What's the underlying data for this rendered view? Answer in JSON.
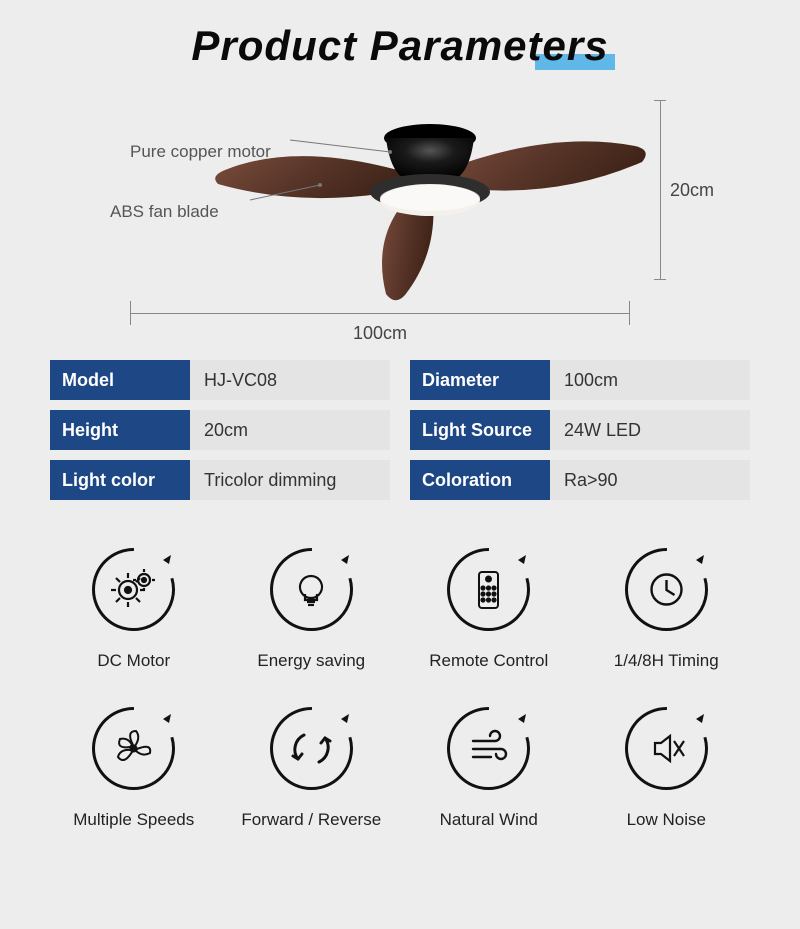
{
  "title": "Product Parameters",
  "title_highlight_color": "#5fb8e8",
  "callouts": {
    "motor": "Pure copper motor",
    "blade": "ABS fan blade"
  },
  "dimensions": {
    "width_label": "100cm",
    "height_label": "20cm"
  },
  "product_image": {
    "motor_color": "#0a0a0a",
    "blade_color": "#5a362a",
    "blade_color_light": "#7a4d3c",
    "light_housing": "#2e2e2e",
    "light_diffuser": "#f3f1ea"
  },
  "specs": [
    {
      "label": "Model",
      "value": "HJ-VC08"
    },
    {
      "label": "Diameter",
      "value": "100cm"
    },
    {
      "label": "Height",
      "value": "20cm"
    },
    {
      "label": "Light Source",
      "value": "24W LED"
    },
    {
      "label": "Light color",
      "value": "Tricolor dimming"
    },
    {
      "label": "Coloration",
      "value": "Ra>90"
    }
  ],
  "spec_style": {
    "key_bg": "#1e4785",
    "key_color": "#ffffff",
    "val_bg": "#e4e4e4",
    "val_color": "#333333"
  },
  "features": [
    {
      "icon": "gear",
      "label": "DC Motor"
    },
    {
      "icon": "bulb",
      "label": "Energy saving"
    },
    {
      "icon": "remote",
      "label": "Remote Control"
    },
    {
      "icon": "clock",
      "label": "1/4/8H Timing"
    },
    {
      "icon": "fan",
      "label": "Multiple Speeds"
    },
    {
      "icon": "arrows",
      "label": "Forward / Reverse"
    },
    {
      "icon": "wind",
      "label": "Natural Wind"
    },
    {
      "icon": "mute",
      "label": "Low Noise"
    }
  ],
  "feature_style": {
    "ring_stroke": "#111111",
    "ring_stroke_width": 3,
    "icon_color": "#111111"
  },
  "background_color": "#ededed"
}
